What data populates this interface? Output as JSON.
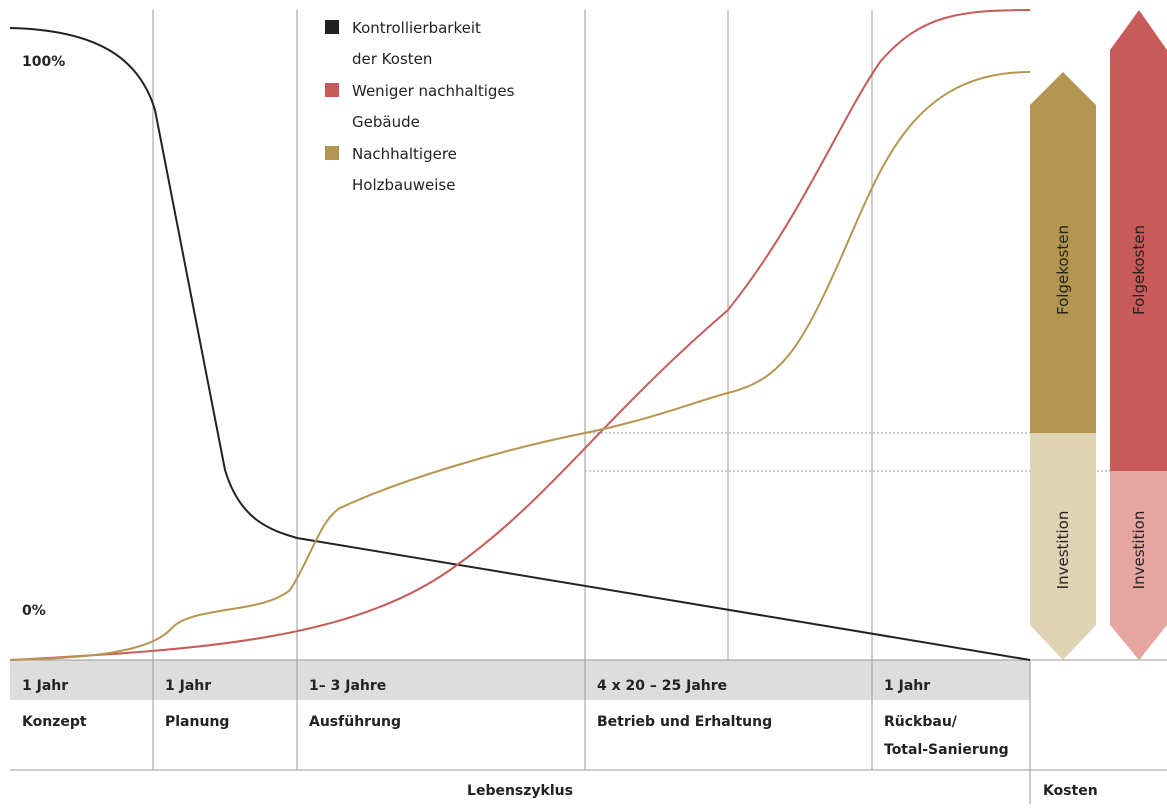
{
  "axis": {
    "top": "100%",
    "bottom": "0%"
  },
  "legend": [
    "Kontrollierbarkeit",
    "der Kosten",
    "Weniger nachhaltiges",
    "Gebäude",
    "Nachhaltigere",
    "Holzbauweise"
  ],
  "phases": [
    {
      "duration": "1 Jahr",
      "name": "Konzept"
    },
    {
      "duration": "1 Jahr",
      "name": "Planung"
    },
    {
      "duration": "1– 3 Jahre",
      "name": "Ausführung"
    },
    {
      "duration": "4 x 20 – 25 Jahre",
      "name": "Betrieb und Erhaltung"
    },
    {
      "duration": "1 Jahr",
      "name": "Rückbau/",
      "name2": "Total-Sanierung"
    }
  ],
  "arrows": {
    "gold": {
      "upper": "Folgekosten",
      "lower": "Investition"
    },
    "red": {
      "upper": "Folgekosten",
      "lower": "Investition"
    }
  },
  "footer": {
    "left": "Lebenszyklus",
    "right": "Kosten"
  }
}
